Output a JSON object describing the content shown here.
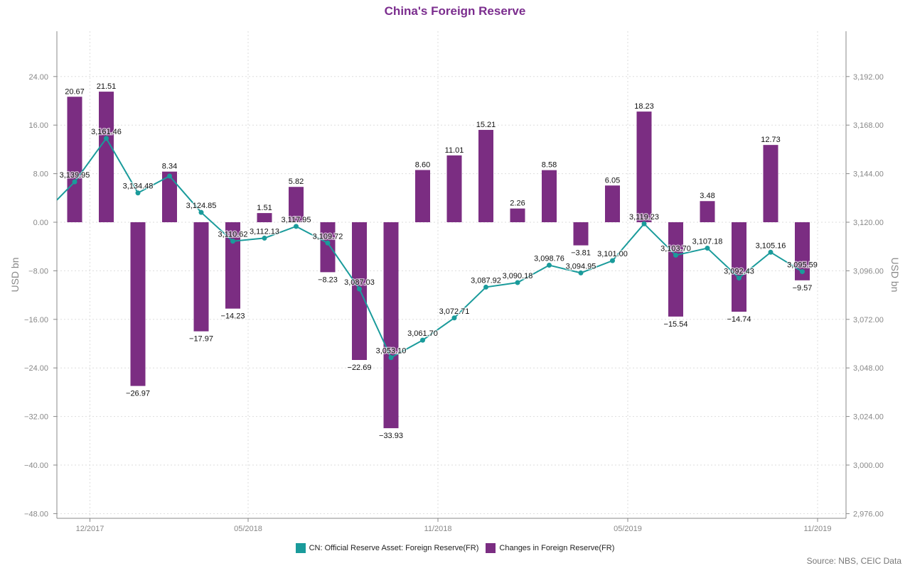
{
  "title": "China's Foreign Reserve",
  "source": "Source: NBS, CEIC Data",
  "colors": {
    "line": "#1a9b9b",
    "bar": "#7b2d82",
    "title": "#7b2d8e",
    "axis": "#888888",
    "grid": "#dddddd"
  },
  "legend": [
    {
      "label": "CN: Official Reserve Asset: Foreign Reserve(FR)",
      "color": "#1a9b9b"
    },
    {
      "label": "Changes in Foreign Reserve(FR)",
      "color": "#7b2d82"
    }
  ],
  "chart_data": {
    "type": "bar",
    "x": [
      "11/2017",
      "12/2017",
      "01/2018",
      "02/2018",
      "03/2018",
      "04/2018",
      "05/2018",
      "06/2018",
      "07/2018",
      "08/2018",
      "09/2018",
      "10/2018",
      "11/2018",
      "12/2018",
      "01/2019",
      "02/2019",
      "03/2019",
      "04/2019",
      "05/2019",
      "06/2019",
      "07/2019",
      "08/2019",
      "09/2019",
      "10/2019",
      "11/2019"
    ],
    "x_tick_labels": [
      "12/2017",
      "05/2018",
      "11/2018",
      "05/2019",
      "11/2019"
    ],
    "x_tick_values": [
      "12/2017",
      "05/2018",
      "11/2018",
      "05/2019",
      "11/2019"
    ],
    "series": [
      {
        "name": "Changes in Foreign Reserve(FR)",
        "type": "bar",
        "axis": "left",
        "values": [
          20.67,
          21.51,
          -26.97,
          8.34,
          -17.97,
          -14.23,
          1.51,
          5.82,
          -8.23,
          -22.69,
          -33.93,
          8.6,
          11.01,
          15.21,
          2.26,
          8.58,
          -3.81,
          6.05,
          18.23,
          -15.54,
          3.48,
          -14.74,
          12.73,
          -9.57,
          null
        ],
        "labels": [
          "20.67",
          "21.51",
          "−26.97",
          "8.34",
          "−17.97",
          "−14.23",
          "1.51",
          "5.82",
          "−8.23",
          "−22.69",
          "−33.93",
          "8.60",
          "11.01",
          "15.21",
          "2.26",
          "8.58",
          "−3.81",
          "6.05",
          "18.23",
          "−15.54",
          "3.48",
          "−14.74",
          "12.73",
          "−9.57",
          ""
        ]
      },
      {
        "name": "CN: Official Reserve Asset: Foreign Reserve(FR)",
        "type": "line",
        "axis": "right",
        "values": [
          3139.95,
          3161.46,
          3134.48,
          3142.82,
          3124.85,
          3110.62,
          3112.13,
          3117.95,
          3109.72,
          3087.03,
          3053.1,
          3061.7,
          3072.71,
          3087.92,
          3090.18,
          3098.76,
          3094.95,
          3101.0,
          3119.23,
          3103.7,
          3107.18,
          3092.43,
          3105.16,
          3095.59,
          null
        ],
        "labels": [
          "3,139.95",
          "3,161.46",
          "3,134.48",
          "",
          "3,124.85",
          "3,110.62",
          "3,112.13",
          "3,117.95",
          "3,109.72",
          "3,087.03",
          "3,053.10",
          "3,061.70",
          "3,072.71",
          "3,087.92",
          "3,090.18",
          "3,098.76",
          "3,094.95",
          "3,101.00",
          "3,119.23",
          "3,103.70",
          "3,107.18",
          "3,092.43",
          "3,105.16",
          "3,095.59",
          ""
        ]
      }
    ],
    "y_left": {
      "label": "USD bn",
      "ticks": [
        24,
        16,
        8,
        0,
        -8,
        -16,
        -24,
        -32,
        -40,
        -48
      ],
      "tick_labels": [
        "24.00",
        "16.00",
        "8.00",
        "0.00",
        "−8.00",
        "−16.00",
        "−24.00",
        "−32.00",
        "−40.00",
        "−48.00"
      ]
    },
    "y_right": {
      "label": "USD bn",
      "ticks": [
        3192,
        3168,
        3144,
        3120,
        3096,
        3072,
        3048,
        3024,
        3000,
        2976
      ],
      "tick_labels": [
        "3,192.00",
        "3,168.00",
        "3,144.00",
        "3,120.00",
        "3,096.00",
        "3,072.00",
        "3,048.00",
        "3,024.00",
        "3,000.00",
        "2,976.00"
      ]
    },
    "grid": true
  }
}
